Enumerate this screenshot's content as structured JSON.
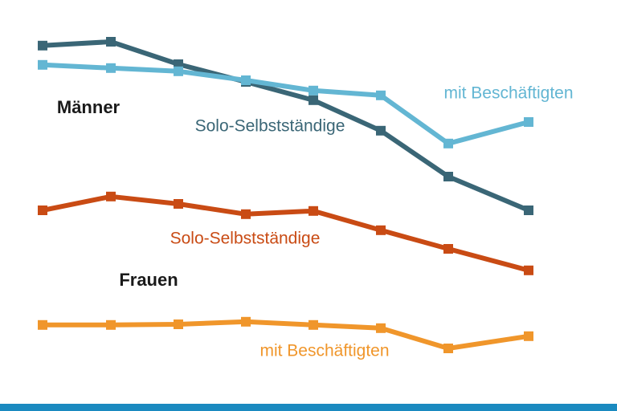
{
  "chart_data": {
    "type": "line",
    "categories": [
      null,
      null,
      null,
      null,
      null,
      null,
      null,
      null
    ],
    "annotations": [
      "Männer",
      "Frauen"
    ],
    "ylim": [
      0,
      110
    ],
    "series": [
      {
        "name": "Solo-Selbstständige",
        "color": "#3a6676",
        "values": [
          105.8,
          107,
          100,
          94.5,
          88.8,
          79.3,
          65,
          54.5
        ]
      },
      {
        "name": "mit Beschäftigten",
        "color": "#63b6d3",
        "values": [
          99.8,
          98.8,
          97.8,
          95,
          91.8,
          90.3,
          75.3,
          82
        ]
      },
      {
        "name": "Solo-Selbstständige",
        "color": "#c94b14",
        "values": [
          54.5,
          58.8,
          56.5,
          53.3,
          54.3,
          48.3,
          42.5,
          35.8
        ]
      },
      {
        "name": "mit Beschäftigten",
        "color": "#f0962b",
        "values": [
          18.8,
          18.8,
          19,
          19.8,
          18.8,
          17.8,
          11.5,
          15.3
        ]
      }
    ]
  }
}
